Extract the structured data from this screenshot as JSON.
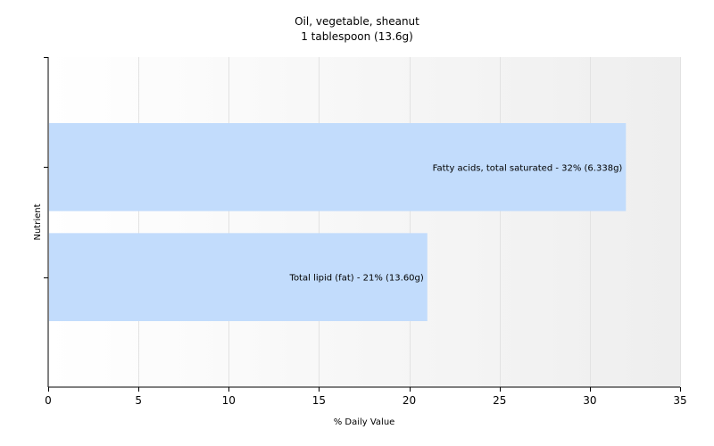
{
  "chart_data": {
    "type": "bar",
    "orientation": "horizontal",
    "title": "Oil, vegetable, sheanut",
    "subtitle": "1 tablespoon (13.6g)",
    "xlabel": "% Daily Value",
    "ylabel": "Nutrient",
    "xlim": [
      0,
      35
    ],
    "xticks": [
      0,
      5,
      10,
      15,
      20,
      25,
      30,
      35
    ],
    "grid": true,
    "bar_color": "#c2dcfc",
    "bars": [
      {
        "value": 32,
        "label": "Fatty acids, total saturated - 32% (6.338g)"
      },
      {
        "value": 21,
        "label": "Total lipid (fat) - 21% (13.60g)"
      }
    ]
  }
}
